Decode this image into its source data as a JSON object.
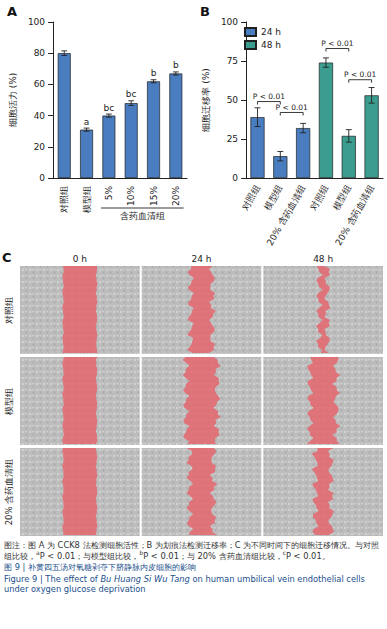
{
  "chart_data": [
    {
      "type": "bar",
      "title": "A",
      "y_label": "细胞活力 (%)",
      "categories": [
        "对照组",
        "模型组",
        "5%",
        "10%",
        "15%",
        "20%"
      ],
      "values": [
        80,
        31,
        40,
        48,
        62,
        67
      ],
      "errors": [
        1.5,
        1,
        1,
        1.5,
        1,
        1
      ],
      "annotations": [
        null,
        "a",
        "bc",
        "bc",
        "b",
        "b"
      ],
      "groups": [
        {
          "label": "含药血清组",
          "from": 2,
          "to": 5
        }
      ],
      "color": "#4a7dbf",
      "ylim": [
        0,
        100
      ],
      "yticks": [
        0,
        20,
        40,
        60,
        80,
        100
      ],
      "grid": false
    },
    {
      "type": "bar",
      "title": "B",
      "y_label": "细胞迁移率 (%)",
      "categories": [
        "对照组",
        "模型组",
        "20% 含药血清组",
        "对照组",
        "模型组",
        "20% 含药血清组"
      ],
      "series": [
        {
          "name": "24 h",
          "color": "#4a7dbf",
          "values": [
            39,
            14,
            32,
            null,
            null,
            null
          ],
          "errors": [
            6,
            3,
            3,
            null,
            null,
            null
          ]
        },
        {
          "name": "48 h",
          "color": "#3a9d8f",
          "values": [
            null,
            null,
            null,
            74,
            27,
            53
          ],
          "errors": [
            null,
            null,
            null,
            3,
            4,
            5
          ]
        }
      ],
      "comparisons": [
        {
          "from": 0,
          "to": 1,
          "y": 49,
          "label": "P < 0.01"
        },
        {
          "from": 1,
          "to": 2,
          "y": 42,
          "label": "P < 0.01"
        },
        {
          "from": 3,
          "to": 4,
          "y": 83,
          "label": "P < 0.01"
        },
        {
          "from": 4,
          "to": 5,
          "y": 63,
          "label": "P < 0.01"
        }
      ],
      "legend": "top-left",
      "ylim": [
        0,
        100
      ],
      "yticks": [
        0,
        25,
        50,
        75,
        100
      ],
      "grid": false
    }
  ],
  "panel_c": {
    "title": "C",
    "columns": [
      "0 h",
      "24 h",
      "48 h"
    ],
    "rows": [
      "对照组",
      "模型组",
      "20% 含药血清组"
    ]
  },
  "caption": {
    "note": [
      {
        "t": "图注：图 A 为 CCK8 法检测细胞活性；B 为划痕法检测迁移率；C 为不同时间下的细胞迁移情况。与对照组比较，"
      },
      {
        "sup": "a"
      },
      {
        "t": "P < 0.01；与模型组比较，"
      },
      {
        "sup": "b"
      },
      {
        "t": "P < 0.01；与 20% 含药血清组比较，"
      },
      {
        "sup": "c"
      },
      {
        "t": "P < 0.01。"
      }
    ],
    "title_zh": "图 9 | 补黄四五汤对氧糖剥夺下脐静脉内皮细胞的影响",
    "title_en": [
      {
        "t": "Figure 9 | The effect of "
      },
      {
        "t": "Bu Huang Si Wu Tang",
        "italic": true
      },
      {
        "t": " on human umbilical vein endothelial cells under oxygen glucose deprivation"
      }
    ]
  }
}
